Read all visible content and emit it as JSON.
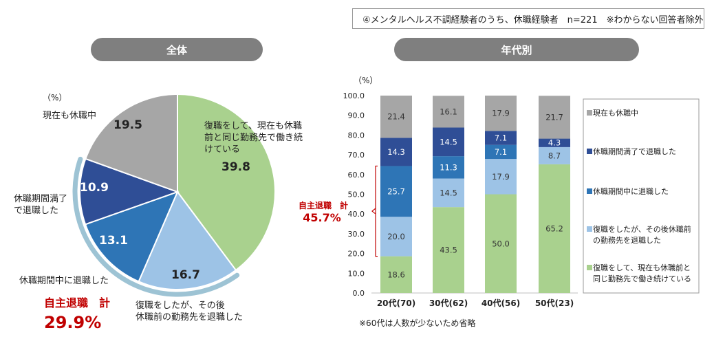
{
  "header": {
    "note": "④メンタルヘルス不調経験者のうち、休職経験者　n=221　※わからない回答者除外",
    "tab_overall": "全体",
    "tab_by_age": "年代別"
  },
  "colors": {
    "grey": "#a6a6a6",
    "navy": "#2f4e96",
    "blue": "#2e75b6",
    "lightblue": "#9dc3e6",
    "green": "#a9d18e",
    "red": "#c00000",
    "ring": "#9dc3d4"
  },
  "chart_data": [
    {
      "type": "pie",
      "title": "全体",
      "unit_label": "（%）",
      "slices": [
        {
          "label": "復職をして、現在も休職前と同じ勤務先で働き続けている",
          "value": 39.8,
          "color": "green",
          "label_lines": [
            "復職をして、現在も休職",
            "前と同じ勤務先で働き続",
            "けている"
          ]
        },
        {
          "label": "復職をしたが、その後休職前の勤務先を退職した",
          "value": 16.7,
          "color": "lightblue",
          "label_lines": [
            "復職をしたが、その後",
            "休職前の勤務先を退職した"
          ]
        },
        {
          "label": "休職期間中に退職した",
          "value": 13.1,
          "color": "blue",
          "label_lines": [
            "休職期間中に退職した"
          ]
        },
        {
          "label": "休職期間満了で退職した",
          "value": 10.9,
          "color": "navy",
          "label_lines": [
            "休職期間満了",
            "で退職した"
          ]
        },
        {
          "label": "現在も休職中",
          "value": 19.5,
          "color": "grey",
          "label_lines": [
            "現在も休職中"
          ]
        }
      ],
      "annotation": {
        "label": "自主退職　計",
        "value": "29.9%"
      }
    },
    {
      "type": "bar",
      "stacked": true,
      "title": "年代別",
      "unit_label": "（%）",
      "ylim": [
        0,
        100
      ],
      "yticks": [
        "0.0",
        "10.0",
        "20.0",
        "30.0",
        "40.0",
        "50.0",
        "60.0",
        "70.0",
        "80.0",
        "90.0",
        "100.0"
      ],
      "categories": [
        "20代(70)",
        "30代(62)",
        "40代(56)",
        "50代(23)"
      ],
      "series": [
        {
          "name": "復職をして、現在も休職前と同じ勤務先で働き続けている",
          "color": "green",
          "legend_lines": [
            "復職をして、現在も休職前と",
            "同じ勤務先で働き続けている"
          ],
          "values": [
            18.6,
            43.5,
            50.0,
            65.2
          ]
        },
        {
          "name": "復職をしたが、その後休職前の勤務先を退職した",
          "color": "lightblue",
          "legend_lines": [
            "復職をしたが、その後休職前",
            "の勤務先を退職した"
          ],
          "values": [
            20.0,
            14.5,
            17.9,
            8.7
          ]
        },
        {
          "name": "休職期間中に退職した",
          "color": "blue",
          "legend_lines": [
            "休職期間中に退職した"
          ],
          "values": [
            25.7,
            11.3,
            7.1,
            0.0
          ]
        },
        {
          "name": "休職期間満了で退職した",
          "color": "navy",
          "legend_lines": [
            "休職期間満了で退職した"
          ],
          "values": [
            14.3,
            14.5,
            7.1,
            4.3
          ]
        },
        {
          "name": "現在も休職中",
          "color": "grey",
          "legend_lines": [
            "現在も休職中"
          ],
          "values": [
            21.4,
            16.1,
            17.9,
            21.7
          ]
        }
      ],
      "labels": [
        [
          "18.6",
          "43.5",
          "50.0",
          "65.2"
        ],
        [
          "20.0",
          "14.5",
          "17.9",
          "8.7"
        ],
        [
          "25.7",
          "11.3",
          "7.1",
          ""
        ],
        [
          "14.3",
          "14.5",
          "7.1",
          "4.3"
        ],
        [
          "21.4",
          "16.1",
          "17.9",
          "21.7"
        ]
      ],
      "annotation": {
        "label": "自主退職　計",
        "value": "45.7%"
      },
      "footnote": "※60代は人数が少ないため省略"
    }
  ]
}
